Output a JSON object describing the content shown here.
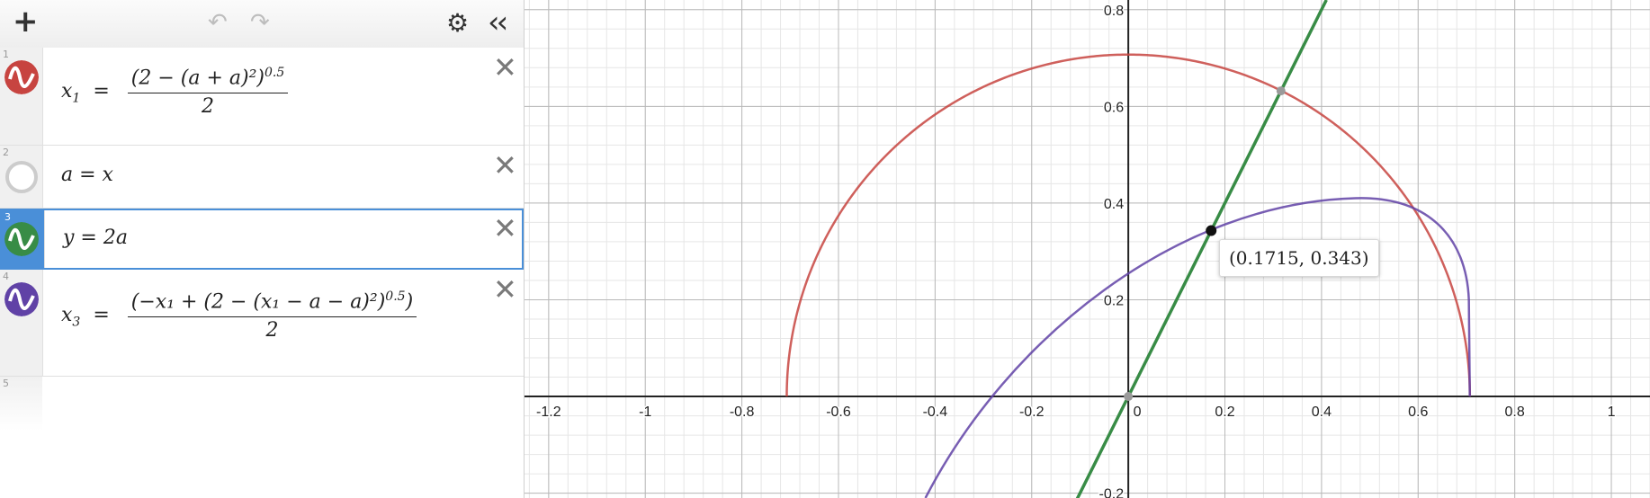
{
  "toolbar": {
    "add_icon": "plus-icon",
    "undo_icon": "undo-icon",
    "redo_icon": "redo-icon",
    "settings_icon": "gear-icon",
    "collapse_icon": "double-chevron-left-icon"
  },
  "expressions": [
    {
      "number": "1",
      "color": "#c74440",
      "icon": "wave-icon",
      "text": "x₁ = (2 − (a + a)²)^0.5 / 2",
      "lhs": "x",
      "lhs_sub": "1",
      "num": "(2 − (a + a)²)",
      "num_exp": "0.5",
      "den": "2"
    },
    {
      "number": "2",
      "color": "#cccccc",
      "icon": "hidden-circle-icon",
      "text": "a = x"
    },
    {
      "number": "3",
      "color": "#388c46",
      "icon": "wave-icon",
      "text": "y = 2a"
    },
    {
      "number": "4",
      "color": "#6042a6",
      "icon": "wave-icon",
      "text": "x₃ = (−x₁ + (2 − (x₁ − a − a)²)^0.5) / 2",
      "lhs": "x",
      "lhs_sub": "3",
      "num": "(−x₁ + (2 − (x₁ − a − a)²)",
      "num_exp": "0.5",
      "num_close": ")",
      "den": "2"
    },
    {
      "number": "5",
      "text": ""
    }
  ],
  "graph": {
    "x_ticks": [
      "-1.2",
      "-1",
      "-0.8",
      "-0.6",
      "-0.4",
      "-0.2",
      "0",
      "0.2",
      "0.4",
      "0.6",
      "0.8",
      "1"
    ],
    "y_ticks": [
      "-0.2",
      "0.2",
      "0.4",
      "0.6",
      "0.8"
    ],
    "xlim": [
      -1.25,
      1.08
    ],
    "ylim": [
      -0.21,
      0.82
    ],
    "curve_colors": {
      "red": "#c74440",
      "green": "#388c46",
      "purple": "#6042a6"
    },
    "highlight_point": {
      "x": 0.1715,
      "y": 0.343
    },
    "tooltip": "(0.1715, 0.343)"
  }
}
